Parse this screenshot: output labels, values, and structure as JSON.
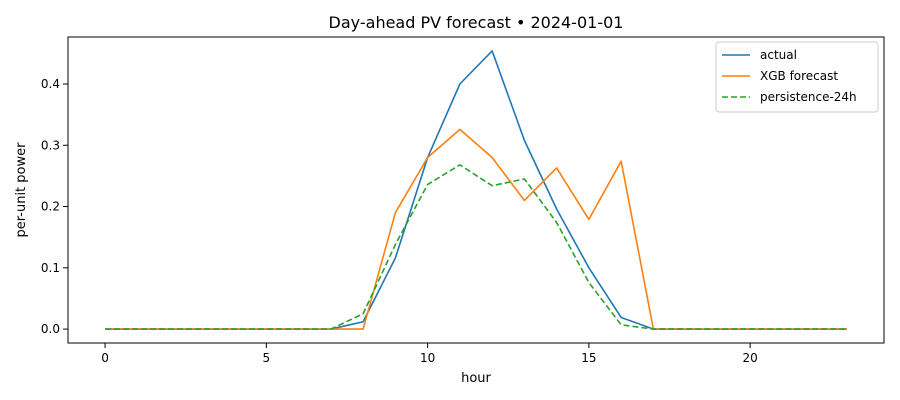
{
  "chart_data": {
    "type": "line",
    "title": "Day-ahead PV forecast  •  2024-01-01",
    "xlabel": "hour",
    "ylabel": "per-unit power",
    "xlim": [
      -1.15,
      24.15
    ],
    "ylim": [
      -0.0227,
      0.4767
    ],
    "xticks": [
      0,
      5,
      10,
      15,
      20
    ],
    "yticks": [
      0.0,
      0.1,
      0.2,
      0.3,
      0.4
    ],
    "xtick_labels": [
      "0",
      "5",
      "10",
      "15",
      "20"
    ],
    "ytick_labels": [
      "0.0",
      "0.1",
      "0.2",
      "0.3",
      "0.4"
    ],
    "grid": false,
    "legend_position": "top-right",
    "x": [
      0,
      1,
      2,
      3,
      4,
      5,
      6,
      7,
      8,
      9,
      10,
      11,
      12,
      13,
      14,
      15,
      16,
      17,
      18,
      19,
      20,
      21,
      22,
      23
    ],
    "series": [
      {
        "name": "actual",
        "color": "#1f77b4",
        "dash": "solid",
        "values": [
          0,
          0,
          0,
          0,
          0,
          0,
          0,
          0,
          0.012,
          0.116,
          0.28,
          0.4,
          0.454,
          0.308,
          0.196,
          0.1,
          0.019,
          0,
          0,
          0,
          0,
          0,
          0,
          0
        ]
      },
      {
        "name": "XGB forecast",
        "color": "#ff7f0e",
        "dash": "solid",
        "values": [
          0,
          0,
          0,
          0,
          0,
          0,
          0,
          0,
          0,
          0.19,
          0.28,
          0.326,
          0.28,
          0.21,
          0.263,
          0.179,
          0.274,
          0,
          0,
          0,
          0,
          0,
          0,
          0
        ]
      },
      {
        "name": "persistence-24h",
        "color": "#2ca02c",
        "dash": "dashed",
        "values": [
          0,
          0,
          0,
          0,
          0,
          0,
          0,
          0,
          0.025,
          0.138,
          0.236,
          0.268,
          0.234,
          0.245,
          0.174,
          0.076,
          0.007,
          0,
          0,
          0,
          0,
          0,
          0,
          0
        ]
      }
    ]
  }
}
